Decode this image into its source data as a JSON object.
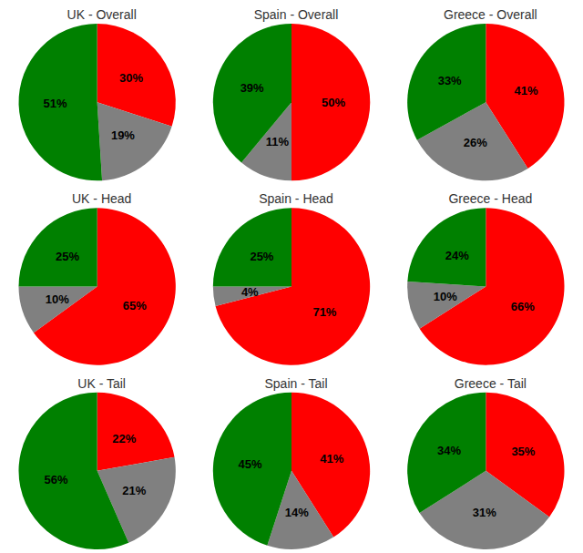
{
  "chart_data": [
    {
      "type": "pie",
      "title": "UK - Overall",
      "values": [
        30,
        19,
        51
      ],
      "value_labels": [
        "30%",
        "19%",
        "51%"
      ],
      "colors": [
        "#ff0000",
        "#808080",
        "#008000"
      ],
      "data_labels": true
    },
    {
      "type": "pie",
      "title": "Spain - Overall",
      "values": [
        50,
        11,
        39
      ],
      "value_labels": [
        "50%",
        "11%",
        "39%"
      ],
      "colors": [
        "#ff0000",
        "#808080",
        "#008000"
      ],
      "data_labels": true
    },
    {
      "type": "pie",
      "title": "Greece - Overall",
      "values": [
        41,
        26,
        33
      ],
      "value_labels": [
        "41%",
        "26%",
        "33%"
      ],
      "colors": [
        "#ff0000",
        "#808080",
        "#008000"
      ],
      "data_labels": true
    },
    {
      "type": "pie",
      "title": "UK - Head",
      "values": [
        65,
        10,
        25
      ],
      "value_labels": [
        "65%",
        "10%",
        "25%"
      ],
      "colors": [
        "#ff0000",
        "#808080",
        "#008000"
      ],
      "data_labels": true
    },
    {
      "type": "pie",
      "title": "Spain - Head",
      "values": [
        71,
        4,
        25
      ],
      "value_labels": [
        "71%",
        "4%",
        "25%"
      ],
      "colors": [
        "#ff0000",
        "#808080",
        "#008000"
      ],
      "data_labels": true
    },
    {
      "type": "pie",
      "title": "Greece - Head",
      "values": [
        66,
        10,
        24
      ],
      "value_labels": [
        "66%",
        "10%",
        "24%"
      ],
      "colors": [
        "#ff0000",
        "#808080",
        "#008000"
      ],
      "data_labels": true
    },
    {
      "type": "pie",
      "title": "UK - Tail",
      "values": [
        22,
        21,
        56
      ],
      "value_labels": [
        "22%",
        "21%",
        "56%"
      ],
      "colors": [
        "#ff0000",
        "#808080",
        "#008000"
      ],
      "data_labels": true
    },
    {
      "type": "pie",
      "title": "Spain - Tail",
      "values": [
        41,
        14,
        45
      ],
      "value_labels": [
        "41%",
        "14%",
        "45%"
      ],
      "colors": [
        "#ff0000",
        "#808080",
        "#008000"
      ],
      "data_labels": true
    },
    {
      "type": "pie",
      "title": "Greece - Tail",
      "values": [
        35,
        31,
        34
      ],
      "value_labels": [
        "35%",
        "31%",
        "34%"
      ],
      "colors": [
        "#ff0000",
        "#808080",
        "#008000"
      ],
      "data_labels": true
    }
  ]
}
